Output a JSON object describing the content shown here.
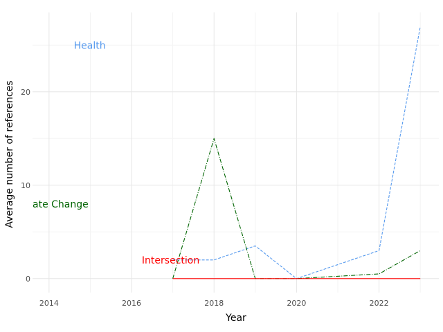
{
  "chart_data": {
    "type": "line",
    "xlabel": "Year",
    "ylabel": "Average number of references",
    "xlim": [
      2013.6,
      2023.45
    ],
    "ylim": [
      -1.5,
      28.5
    ],
    "x_ticks": [
      2014,
      2016,
      2018,
      2020,
      2022
    ],
    "y_ticks": [
      0,
      10,
      20
    ],
    "grid": true,
    "series": [
      {
        "name": "Health",
        "color": "#5599ee",
        "style": "dashed",
        "x": [
          2017,
          2018,
          2019,
          2020,
          2022,
          2023
        ],
        "values": [
          2,
          2,
          3.5,
          0,
          3,
          27
        ]
      },
      {
        "name": "Climate Change",
        "color": "#006400",
        "style": "dashdot",
        "x": [
          2017,
          2018,
          2019,
          2020,
          2022,
          2023
        ],
        "values": [
          0,
          15,
          0,
          0,
          0.5,
          3
        ]
      },
      {
        "name": "Intersection",
        "color": "#ff0000",
        "style": "solid",
        "x": [
          2017,
          2018,
          2019,
          2020,
          2022,
          2023
        ],
        "values": [
          0,
          0,
          0,
          0,
          0,
          0
        ]
      }
    ],
    "annotations": [
      {
        "text": "Health",
        "x": 2014.6,
        "y": 25,
        "color": "#5599ee"
      },
      {
        "text": "ate Change",
        "x": 2013.6,
        "y": 8,
        "color": "#006400"
      },
      {
        "text": "Intersection",
        "x": 2016.25,
        "y": 2,
        "color": "#ff0000"
      }
    ]
  }
}
